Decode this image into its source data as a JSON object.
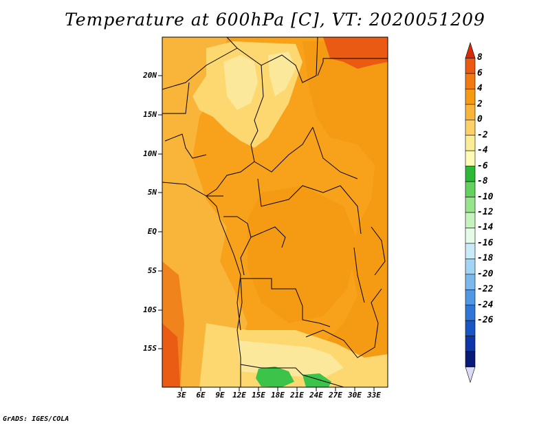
{
  "title": "Temperature at 600hPa [C], VT: 2020051209",
  "credit": "GrADS: IGES/COLA",
  "lat_ticks": [
    "20N",
    "15N",
    "10N",
    "5N",
    "EQ",
    "5S",
    "10S",
    "15S"
  ],
  "lon_ticks": [
    "3E",
    "6E",
    "9E",
    "12E",
    "15E",
    "18E",
    "21E",
    "24E",
    "27E",
    "30E",
    "33E"
  ],
  "colorbar": {
    "labels": [
      "8",
      "6",
      "4",
      "2",
      "0",
      "-2",
      "-4",
      "-6",
      "-8",
      "-10",
      "-12",
      "-14",
      "-16",
      "-18",
      "-20",
      "-22",
      "-24",
      "-26"
    ],
    "colors": [
      "#d82a06",
      "#eb5a12",
      "#f27a14",
      "#f59b13",
      "#f9b43a",
      "#fdd068",
      "#fbec96",
      "#fffab7",
      "#2db935",
      "#63d25d",
      "#97e48c",
      "#c5f2bd",
      "#e6fbe7",
      "#c9ebf8",
      "#a2d4f5",
      "#7ab8ee",
      "#5098e3",
      "#2f76d6",
      "#1756c5",
      "#0e36a8",
      "#0a1a78",
      "#dddcf8"
    ]
  },
  "fields": {
    "hot_orange": "#f7a21a",
    "mid_orange": "#f9b43a",
    "light_yellow": "#fdd76f",
    "pale_yellow": "#fbe89a",
    "dark_orange": "#f0831b",
    "red_orange": "#ea5b14",
    "green": "#3cc34a"
  }
}
